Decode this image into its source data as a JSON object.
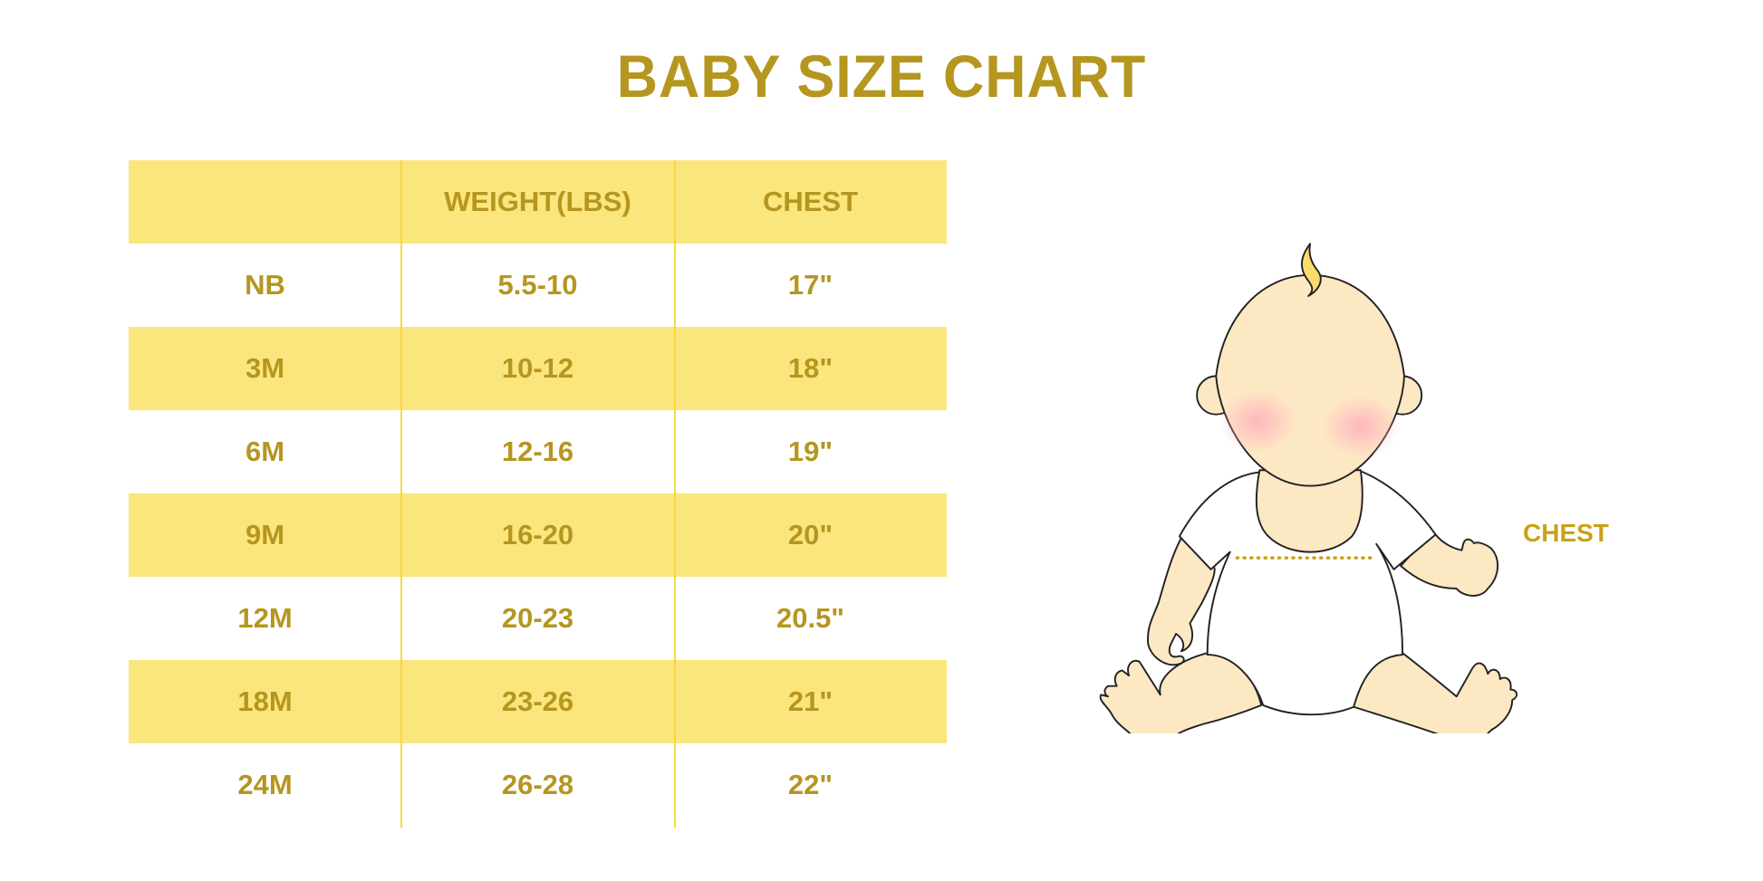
{
  "title": "BABY SIZE CHART",
  "table": {
    "headers": [
      "",
      "WEIGHT(LBS)",
      "CHEST"
    ],
    "rows": [
      [
        "NB",
        "5.5-10",
        "17\""
      ],
      [
        "3M",
        "10-12",
        "18\""
      ],
      [
        "6M",
        "12-16",
        "19\""
      ],
      [
        "9M",
        "16-20",
        "20\""
      ],
      [
        "12M",
        "20-23",
        "20.5\""
      ],
      [
        "18M",
        "23-26",
        "21\""
      ],
      [
        "24M",
        "26-28",
        "22\""
      ]
    ]
  },
  "illustration": {
    "chest_label": "CHEST"
  },
  "colors": {
    "text": "#b5961f",
    "band": "#fbe57d",
    "divider": "#f7d840"
  }
}
